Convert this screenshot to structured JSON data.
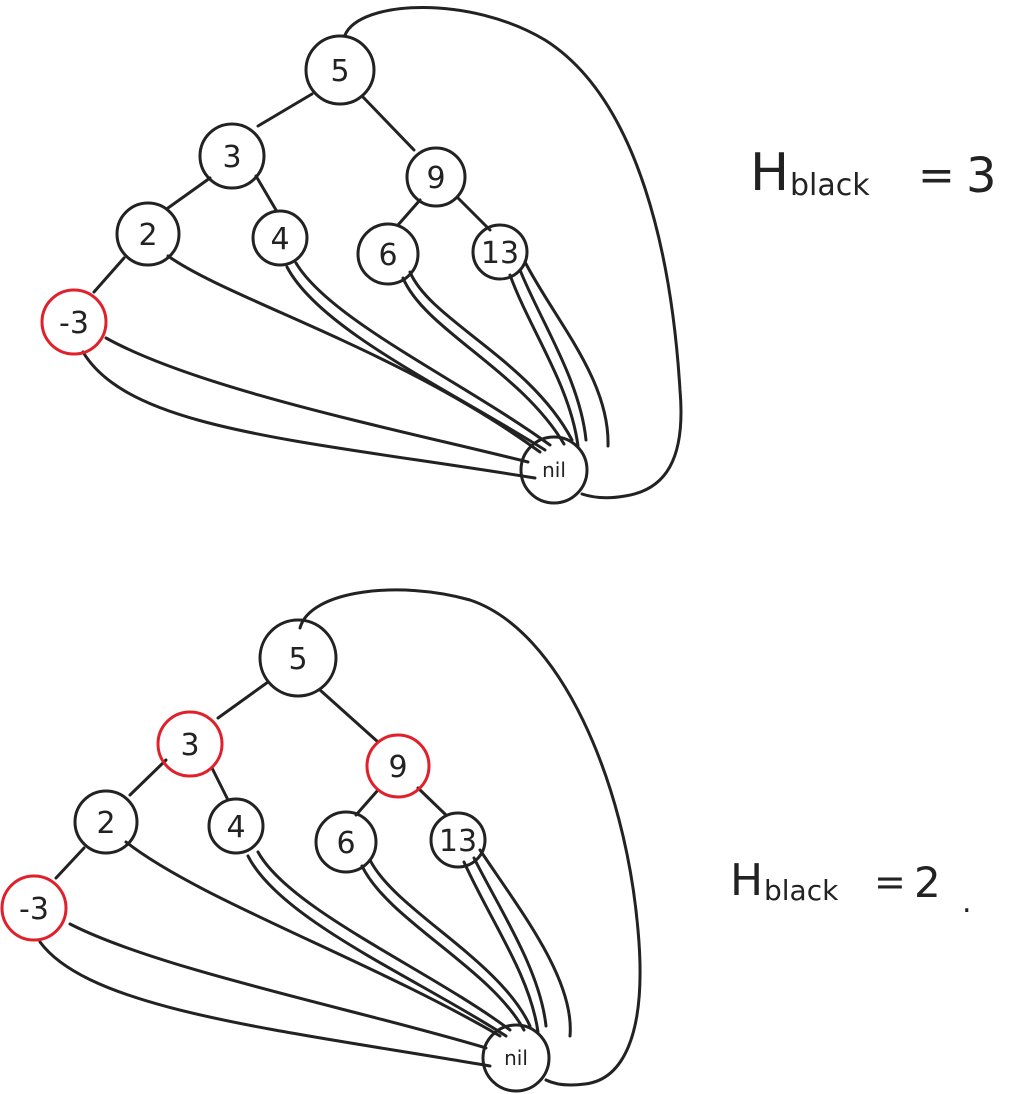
{
  "colors": {
    "black": "#222222",
    "red": "#e0202a",
    "background": "#ffffff"
  },
  "trees": [
    {
      "id": "top",
      "nodes": [
        {
          "key": "n5",
          "label": "5",
          "color": "black"
        },
        {
          "key": "n3",
          "label": "3",
          "color": "black"
        },
        {
          "key": "n9",
          "label": "9",
          "color": "black"
        },
        {
          "key": "n2",
          "label": "2",
          "color": "black"
        },
        {
          "key": "n4",
          "label": "4",
          "color": "black"
        },
        {
          "key": "n6",
          "label": "6",
          "color": "black"
        },
        {
          "key": "n13",
          "label": "13",
          "color": "black"
        },
        {
          "key": "nm3",
          "label": "-3",
          "color": "red"
        },
        {
          "key": "nil",
          "label": "nil",
          "color": "black"
        }
      ],
      "black_height_label": {
        "H": "H",
        "sub": "black",
        "eq": "=",
        "value": "3"
      }
    },
    {
      "id": "bottom",
      "nodes": [
        {
          "key": "n5",
          "label": "5",
          "color": "black"
        },
        {
          "key": "n3",
          "label": "3",
          "color": "red"
        },
        {
          "key": "n9",
          "label": "9",
          "color": "red"
        },
        {
          "key": "n2",
          "label": "2",
          "color": "black"
        },
        {
          "key": "n4",
          "label": "4",
          "color": "black"
        },
        {
          "key": "n6",
          "label": "6",
          "color": "black"
        },
        {
          "key": "n13",
          "label": "13",
          "color": "black"
        },
        {
          "key": "nm3",
          "label": "-3",
          "color": "red"
        },
        {
          "key": "nil",
          "label": "nil",
          "color": "black"
        }
      ],
      "black_height_label": {
        "H": "H",
        "sub": "black",
        "eq": "=",
        "value": "2",
        "trail": "."
      }
    }
  ]
}
